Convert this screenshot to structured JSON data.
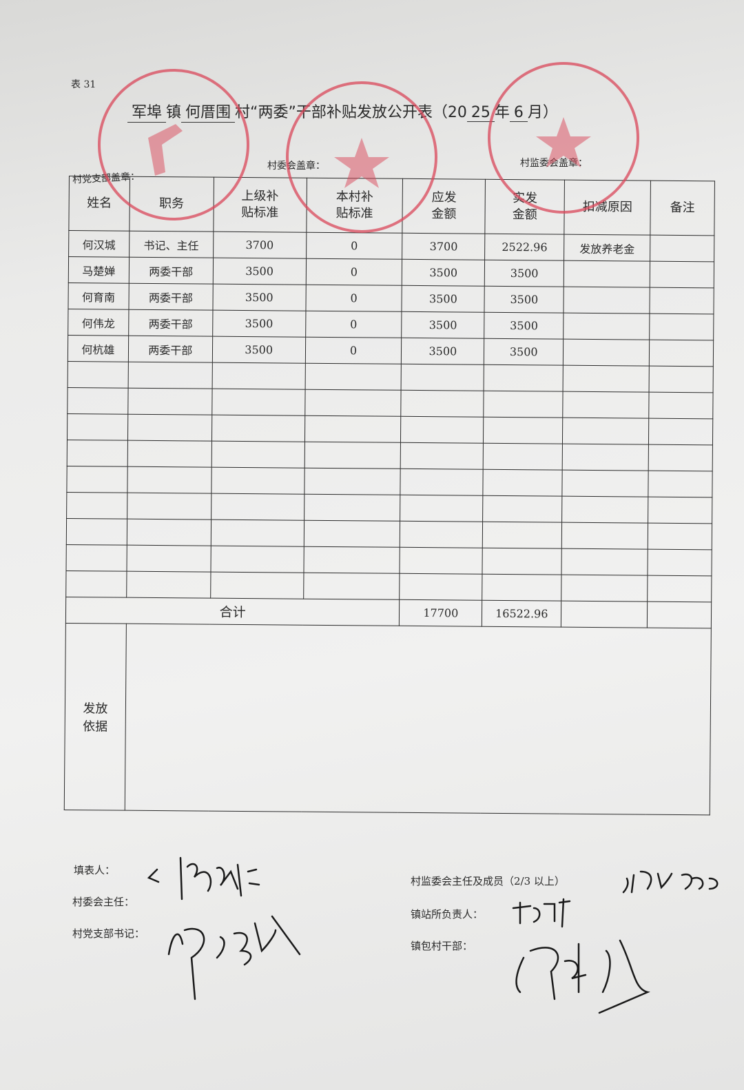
{
  "form_number": "表 31",
  "title": {
    "town": "军埠",
    "town_suffix": "镇",
    "village": "何厝围",
    "middle": "村“两委”干部补贴发放公开表（20",
    "year": "25",
    "year_suffix": "年",
    "month": "6",
    "month_suffix": "月）"
  },
  "seal_labels": {
    "party_branch": "村党支部盖章：",
    "village_committee": "村委会盖章：",
    "supervision": "村监委会盖章："
  },
  "stamps": [
    {
      "name": "party-branch-seal",
      "color": "#d9475a"
    },
    {
      "name": "village-committee-seal",
      "color": "#d9475a"
    },
    {
      "name": "supervision-committee-seal",
      "color": "#d9475a"
    }
  ],
  "table": {
    "headers": [
      "姓名",
      "职务",
      "上级补\n贴标准",
      "本村补\n贴标准",
      "应发\n金额",
      "实发\n金额",
      "扣减原因",
      "备注"
    ],
    "rows": [
      [
        "何汉城",
        "书记、主任",
        "3700",
        "0",
        "3700",
        "2522.96",
        "发放养老金",
        ""
      ],
      [
        "马楚婵",
        "两委干部",
        "3500",
        "0",
        "3500",
        "3500",
        "",
        ""
      ],
      [
        "何育南",
        "两委干部",
        "3500",
        "0",
        "3500",
        "3500",
        "",
        ""
      ],
      [
        "何伟龙",
        "两委干部",
        "3500",
        "0",
        "3500",
        "3500",
        "",
        ""
      ],
      [
        "何杭雄",
        "两委干部",
        "3500",
        "0",
        "3500",
        "3500",
        "",
        ""
      ]
    ],
    "total_label": "合计",
    "total_due": "17700",
    "total_paid": "16522.96",
    "basis_label": "发放\n依据"
  },
  "signatures": {
    "preparer": "填表人：",
    "committee_director": "村委会主任：",
    "party_secretary": "村党支部书记：",
    "supervision_members": "村监委会主任及成员（2/3 以上）",
    "town_station_head": "镇站所负责人：",
    "town_cadre": "镇包村干部："
  },
  "ink_color": "#1a1a1a"
}
